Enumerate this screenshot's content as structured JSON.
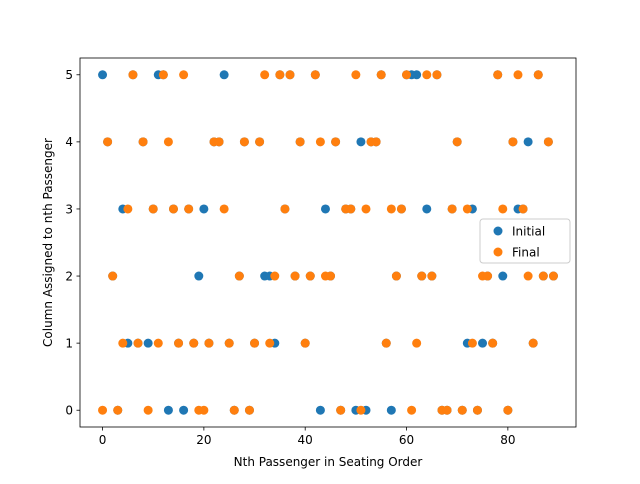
{
  "chart_data": {
    "type": "scatter",
    "title": "",
    "xlabel": "Nth Passenger in Seating Order",
    "ylabel": "Column Assigned to nth Passenger",
    "xlim": [
      -4.45,
      93.45
    ],
    "ylim": [
      -0.25,
      5.25
    ],
    "xticks": [
      0,
      20,
      40,
      60,
      80
    ],
    "yticks": [
      0,
      1,
      2,
      3,
      4,
      5
    ],
    "grid": false,
    "legend_position": "center-right",
    "series": [
      {
        "name": "Initial",
        "color": "#1f77b4",
        "points": [
          [
            0,
            5
          ],
          [
            1,
            4
          ],
          [
            2,
            2
          ],
          [
            3,
            0
          ],
          [
            4,
            3
          ],
          [
            5,
            1
          ],
          [
            6,
            5
          ],
          [
            7,
            1
          ],
          [
            8,
            4
          ],
          [
            9,
            1
          ],
          [
            10,
            3
          ],
          [
            11,
            5
          ],
          [
            12,
            5
          ],
          [
            13,
            0
          ],
          [
            14,
            3
          ],
          [
            15,
            1
          ],
          [
            16,
            0
          ],
          [
            17,
            3
          ],
          [
            18,
            1
          ],
          [
            19,
            2
          ],
          [
            20,
            3
          ],
          [
            21,
            1
          ],
          [
            22,
            4
          ],
          [
            23,
            4
          ],
          [
            24,
            5
          ],
          [
            25,
            1
          ],
          [
            26,
            0
          ],
          [
            27,
            2
          ],
          [
            28,
            4
          ],
          [
            29,
            0
          ],
          [
            30,
            1
          ],
          [
            31,
            4
          ],
          [
            32,
            2
          ],
          [
            33,
            2
          ],
          [
            34,
            1
          ],
          [
            35,
            5
          ],
          [
            36,
            3
          ],
          [
            37,
            5
          ],
          [
            38,
            2
          ],
          [
            39,
            4
          ],
          [
            40,
            1
          ],
          [
            41,
            2
          ],
          [
            42,
            5
          ],
          [
            43,
            0
          ],
          [
            44,
            3
          ],
          [
            45,
            2
          ],
          [
            46,
            4
          ],
          [
            47,
            0
          ],
          [
            48,
            3
          ],
          [
            49,
            3
          ],
          [
            50,
            0
          ],
          [
            51,
            4
          ],
          [
            52,
            0
          ],
          [
            53,
            4
          ],
          [
            54,
            4
          ],
          [
            55,
            5
          ],
          [
            56,
            1
          ],
          [
            57,
            0
          ],
          [
            58,
            2
          ],
          [
            59,
            3
          ],
          [
            60,
            5
          ],
          [
            61,
            5
          ],
          [
            62,
            5
          ],
          [
            63,
            2
          ],
          [
            64,
            3
          ],
          [
            65,
            2
          ],
          [
            66,
            5
          ],
          [
            67,
            0
          ],
          [
            68,
            0
          ],
          [
            69,
            3
          ],
          [
            70,
            4
          ],
          [
            71,
            0
          ],
          [
            72,
            1
          ],
          [
            73,
            3
          ],
          [
            74,
            0
          ],
          [
            75,
            1
          ],
          [
            76,
            2
          ],
          [
            77,
            1
          ],
          [
            78,
            5
          ],
          [
            79,
            2
          ],
          [
            80,
            0
          ],
          [
            81,
            4
          ],
          [
            82,
            3
          ],
          [
            83,
            3
          ],
          [
            84,
            4
          ],
          [
            85,
            1
          ],
          [
            86,
            5
          ],
          [
            87,
            2
          ],
          [
            88,
            4
          ],
          [
            89,
            2
          ]
        ]
      },
      {
        "name": "Final",
        "color": "#ff7f0e",
        "points": [
          [
            0,
            0
          ],
          [
            1,
            4
          ],
          [
            2,
            2
          ],
          [
            3,
            0
          ],
          [
            4,
            1
          ],
          [
            5,
            3
          ],
          [
            6,
            5
          ],
          [
            7,
            1
          ],
          [
            8,
            4
          ],
          [
            9,
            0
          ],
          [
            10,
            3
          ],
          [
            11,
            1
          ],
          [
            12,
            5
          ],
          [
            13,
            4
          ],
          [
            14,
            3
          ],
          [
            15,
            1
          ],
          [
            16,
            5
          ],
          [
            17,
            3
          ],
          [
            18,
            1
          ],
          [
            19,
            0
          ],
          [
            20,
            0
          ],
          [
            21,
            1
          ],
          [
            22,
            4
          ],
          [
            23,
            4
          ],
          [
            24,
            3
          ],
          [
            25,
            1
          ],
          [
            26,
            0
          ],
          [
            27,
            2
          ],
          [
            28,
            4
          ],
          [
            29,
            0
          ],
          [
            30,
            1
          ],
          [
            31,
            4
          ],
          [
            32,
            5
          ],
          [
            33,
            1
          ],
          [
            34,
            2
          ],
          [
            35,
            5
          ],
          [
            36,
            3
          ],
          [
            37,
            5
          ],
          [
            38,
            2
          ],
          [
            39,
            4
          ],
          [
            40,
            1
          ],
          [
            41,
            2
          ],
          [
            42,
            5
          ],
          [
            43,
            4
          ],
          [
            44,
            2
          ],
          [
            45,
            2
          ],
          [
            46,
            4
          ],
          [
            47,
            0
          ],
          [
            48,
            3
          ],
          [
            49,
            3
          ],
          [
            50,
            5
          ],
          [
            51,
            0
          ],
          [
            52,
            3
          ],
          [
            53,
            4
          ],
          [
            54,
            4
          ],
          [
            55,
            5
          ],
          [
            56,
            1
          ],
          [
            57,
            3
          ],
          [
            58,
            2
          ],
          [
            59,
            3
          ],
          [
            60,
            5
          ],
          [
            61,
            0
          ],
          [
            62,
            1
          ],
          [
            63,
            2
          ],
          [
            64,
            5
          ],
          [
            65,
            2
          ],
          [
            66,
            5
          ],
          [
            67,
            0
          ],
          [
            68,
            0
          ],
          [
            69,
            3
          ],
          [
            70,
            4
          ],
          [
            71,
            0
          ],
          [
            72,
            3
          ],
          [
            73,
            1
          ],
          [
            74,
            0
          ],
          [
            75,
            2
          ],
          [
            76,
            2
          ],
          [
            77,
            1
          ],
          [
            78,
            5
          ],
          [
            79,
            3
          ],
          [
            80,
            0
          ],
          [
            81,
            4
          ],
          [
            82,
            5
          ],
          [
            83,
            3
          ],
          [
            84,
            2
          ],
          [
            85,
            1
          ],
          [
            86,
            5
          ],
          [
            87,
            2
          ],
          [
            88,
            4
          ],
          [
            89,
            2
          ]
        ]
      }
    ]
  }
}
